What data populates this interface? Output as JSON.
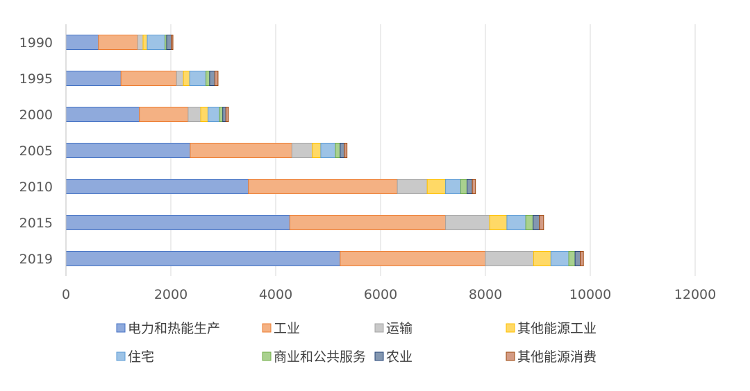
{
  "chart_data": {
    "type": "bar",
    "orientation": "horizontal",
    "stacked": true,
    "categories": [
      "1990",
      "1995",
      "2000",
      "2005",
      "2010",
      "2015",
      "2019"
    ],
    "series": [
      {
        "name": "电力和热能生产",
        "color": "#8FAADC",
        "stroke": "#4472C4",
        "values": [
          620,
          1050,
          1400,
          2370,
          3480,
          4270,
          5230
        ]
      },
      {
        "name": "工业",
        "color": "#F4B183",
        "stroke": "#ED7D31",
        "values": [
          750,
          1060,
          930,
          1940,
          2840,
          2970,
          2770
        ]
      },
      {
        "name": "运输",
        "color": "#C9C9C9",
        "stroke": "#A5A5A5",
        "values": [
          100,
          130,
          240,
          390,
          570,
          840,
          920
        ]
      },
      {
        "name": "其他能源工业",
        "color": "#FFD966",
        "stroke": "#FFC000",
        "values": [
          80,
          120,
          140,
          160,
          350,
          330,
          330
        ]
      },
      {
        "name": "住宅",
        "color": "#9DC3E6",
        "stroke": "#5B9BD5",
        "values": [
          340,
          310,
          220,
          280,
          290,
          360,
          340
        ]
      },
      {
        "name": "商业和公共服务",
        "color": "#A9D18E",
        "stroke": "#70AD47",
        "values": [
          30,
          70,
          60,
          90,
          120,
          140,
          120
        ]
      },
      {
        "name": "农业",
        "color": "#8497B0",
        "stroke": "#264478",
        "values": [
          90,
          100,
          60,
          80,
          100,
          120,
          100
        ]
      },
      {
        "name": "其他能源消费",
        "color": "#D39B84",
        "stroke": "#9E480E",
        "values": [
          30,
          60,
          50,
          50,
          60,
          80,
          60
        ]
      }
    ],
    "xlim": [
      0,
      12000
    ],
    "xticks": [
      0,
      2000,
      4000,
      6000,
      8000,
      10000,
      12000
    ],
    "xtick_labels": [
      "0",
      "2000",
      "4000",
      "6000",
      "8000",
      "10000",
      "12000"
    ],
    "grid": "vertical",
    "legend_position": "bottom",
    "title": "",
    "xlabel": "",
    "ylabel": ""
  }
}
